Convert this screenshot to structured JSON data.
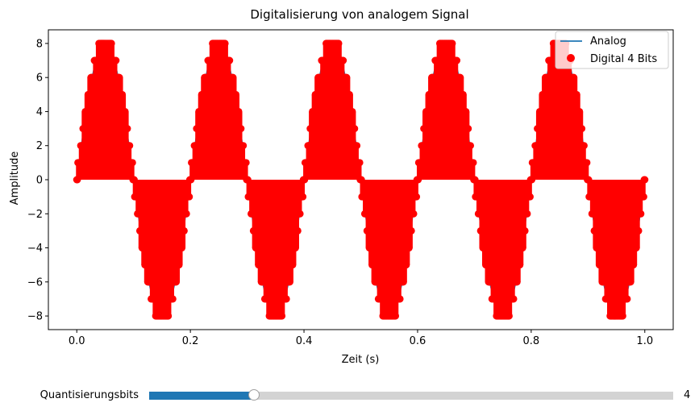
{
  "chart_data": {
    "type": "line",
    "title": "Digitalisierung von analogem Signal",
    "xlabel": "Zeit (s)",
    "ylabel": "Amplitude",
    "xlim": [
      -0.05,
      1.05
    ],
    "ylim": [
      -8.8,
      8.8
    ],
    "xticks": [
      0.0,
      0.2,
      0.4,
      0.6,
      0.8,
      1.0
    ],
    "xtick_labels": [
      "0.0",
      "0.2",
      "0.4",
      "0.6",
      "0.8",
      "1.0"
    ],
    "yticks": [
      -8,
      -6,
      -4,
      -2,
      0,
      2,
      4,
      6,
      8
    ],
    "ytick_labels": [
      "−8",
      "−6",
      "−4",
      "−2",
      "0",
      "2",
      "4",
      "6",
      "8"
    ],
    "grid": false,
    "legend_position": "top-right",
    "series": [
      {
        "name": "Analog",
        "style": "line",
        "color": "#1f77b4",
        "function": "8*sin(2*pi*5*t)",
        "frequency_hz": 5,
        "amplitude": 8
      },
      {
        "name": "Digital 4 Bits",
        "style": "markers",
        "color": "#ff0000",
        "function": "round(8*sin(2*pi*5*t)) sampled 0..1 s",
        "levels": [
          -8,
          -7,
          -6,
          -5,
          -4,
          -3,
          -2,
          -1,
          0,
          1,
          2,
          3,
          4,
          5,
          6,
          7,
          8
        ]
      }
    ]
  },
  "slider": {
    "label": "Quantisierungsbits",
    "value": "4",
    "fraction": 0.2
  }
}
